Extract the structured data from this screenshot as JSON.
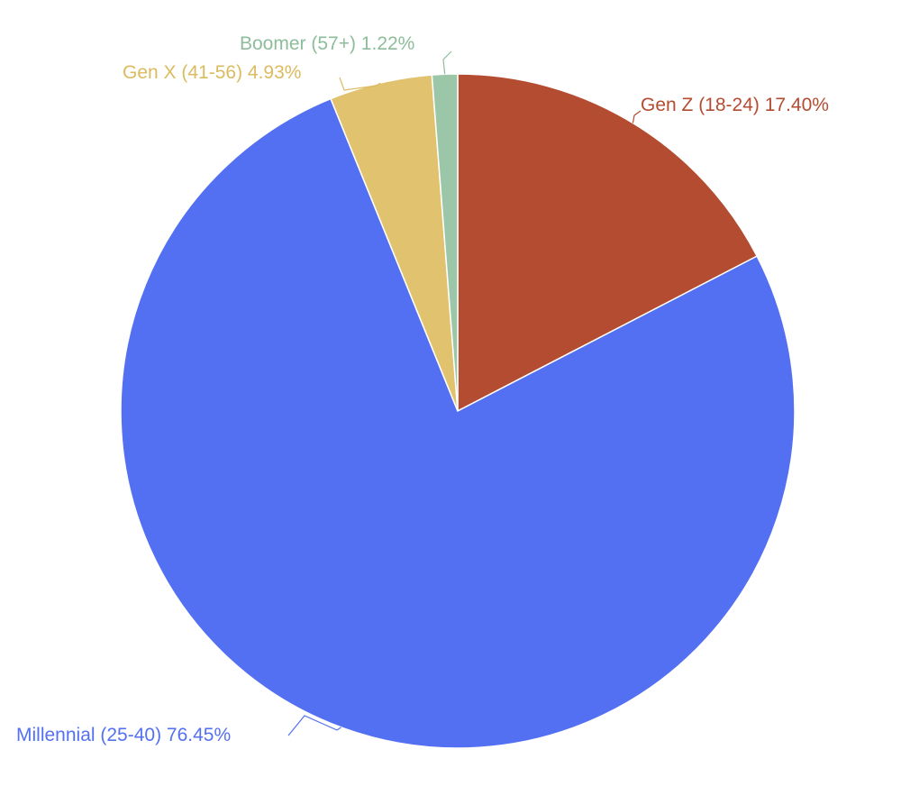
{
  "chart_data": {
    "type": "pie",
    "title": "",
    "legend": "none",
    "slices": [
      {
        "name": "Gen Z (18-24)",
        "value": 17.4,
        "label": "Gen Z (18-24) 17.40%",
        "color": "#b34c31",
        "label_color": "#b34c31"
      },
      {
        "name": "Millennial (25-40)",
        "value": 76.45,
        "label": "Millennial (25-40) 76.45%",
        "color": "#5470f2",
        "label_color": "#5470f2"
      },
      {
        "name": "Gen X (41-56)",
        "value": 4.93,
        "label": "Gen X (41-56) 4.93%",
        "color": "#e1c36f",
        "label_color": "#dcbb60"
      },
      {
        "name": "Boomer (57+)",
        "value": 1.22,
        "label": "Boomer (57+) 1.22%",
        "color": "#9cc6a8",
        "label_color": "#8dbd9a"
      }
    ]
  }
}
